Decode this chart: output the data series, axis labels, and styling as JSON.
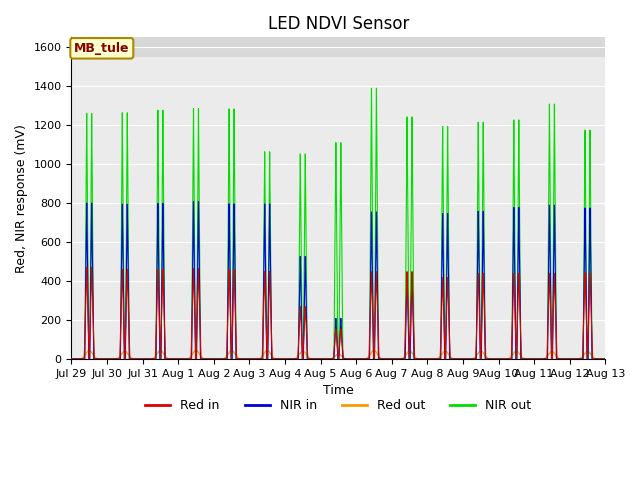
{
  "title": "LED NDVI Sensor",
  "xlabel": "Time",
  "ylabel": "Red, NIR response (mV)",
  "ylim": [
    0,
    1650
  ],
  "yticks": [
    0,
    200,
    400,
    600,
    800,
    1000,
    1200,
    1400,
    1600
  ],
  "xtick_labels": [
    "Jul 29",
    "Jul 30",
    "Jul 31",
    "Aug 1",
    "Aug 2",
    "Aug 3",
    "Aug 4",
    "Aug 5",
    "Aug 6",
    "Aug 7",
    "Aug 8",
    "Aug 9",
    "Aug 10",
    "Aug 11",
    "Aug 12",
    "Aug 13"
  ],
  "legend_labels": [
    "Red in",
    "NIR in",
    "Red out",
    "NIR out"
  ],
  "legend_colors": [
    "#dd0000",
    "#0000dd",
    "#ff9900",
    "#00dd00"
  ],
  "annotation_text": "MB_tule",
  "annotation_box_color": "#ffffcc",
  "annotation_border_color": "#aa8800",
  "annotation_text_color": "#880000",
  "plot_bg_color": "#ebebeb",
  "gray_band_color": "#d8d8d8",
  "title_fontsize": 12,
  "axis_label_fontsize": 9,
  "tick_label_fontsize": 8,
  "n_days": 15,
  "red_in_peaks": [
    470,
    460,
    460,
    465,
    460,
    450,
    270,
    155,
    450,
    450,
    420,
    440,
    440,
    440,
    440
  ],
  "nir_in_peaks": [
    800,
    795,
    800,
    810,
    800,
    800,
    530,
    210,
    760,
    440,
    750,
    760,
    780,
    790,
    775
  ],
  "red_out_peaks": [
    45,
    42,
    45,
    45,
    45,
    45,
    42,
    25,
    45,
    42,
    42,
    42,
    42,
    40,
    40
  ],
  "nir_out_peaks": [
    1260,
    1265,
    1280,
    1290,
    1290,
    1070,
    1060,
    1120,
    1400,
    1250,
    1200,
    1220,
    1230,
    1310,
    1175
  ]
}
